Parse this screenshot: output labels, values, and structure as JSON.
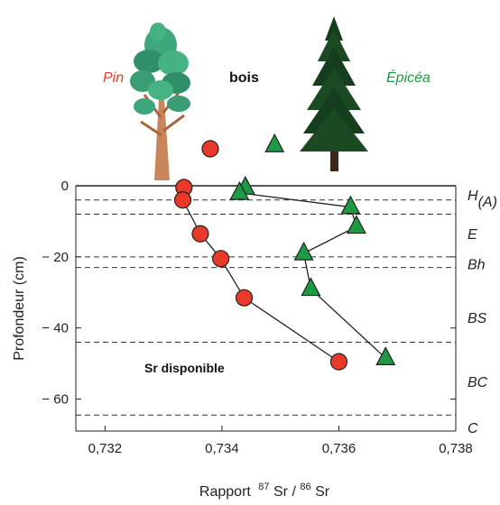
{
  "chart_data": {
    "type": "scatter",
    "xlabel": "Rapport",
    "xlabel_isotope": {
      "mass1": "87",
      "el1": "Sr",
      "mass2": "86",
      "el2": "Sr"
    },
    "ylabel": "Profondeur (cm)",
    "xlim": [
      0.7315,
      0.738
    ],
    "ylim": [
      0,
      -69
    ],
    "x_ticks": [
      0.732,
      0.734,
      0.736,
      0.738
    ],
    "x_tick_labels": [
      "0,732",
      "0,734",
      "0,736",
      "0,738"
    ],
    "y_ticks": [
      0,
      -20,
      -40,
      -60
    ],
    "y_tick_labels": [
      "0",
      "− 20",
      "− 40",
      "− 60"
    ],
    "horizon_boundaries": [
      -4,
      -8,
      -20,
      -23,
      -44,
      -64.5
    ],
    "horizons": [
      {
        "label": "H",
        "sub": "(A)",
        "depth": -2.5
      },
      {
        "label": "E",
        "depth": -13.5
      },
      {
        "label": "Bh",
        "depth": -22
      },
      {
        "label": "BS",
        "depth": -37
      },
      {
        "label": "BC",
        "depth": -55
      },
      {
        "label": "C",
        "depth": -68
      }
    ],
    "series": [
      {
        "name": "Pin",
        "marker": "circle",
        "color": "#e8392a",
        "points": [
          [
            0.73335,
            -0.5
          ],
          [
            0.73333,
            -4
          ],
          [
            0.73363,
            -13.5
          ],
          [
            0.73398,
            -20.5
          ],
          [
            0.73438,
            -31.5
          ],
          [
            0.736,
            -49.5
          ]
        ],
        "wood_value": 0.7338
      },
      {
        "name": "Épicéa",
        "marker": "triangle",
        "color": "#1e9a45",
        "points": [
          [
            0.7344,
            -0.5
          ],
          [
            0.7343,
            -2
          ],
          [
            0.7362,
            -6
          ],
          [
            0.7363,
            -11.5
          ],
          [
            0.7354,
            -19
          ],
          [
            0.73552,
            -29
          ],
          [
            0.7368,
            -48.5
          ]
        ],
        "connected_from_index": 1,
        "wood_value": 0.7349
      }
    ],
    "annotations": {
      "wood": "bois",
      "available": "Sr disponible"
    }
  }
}
